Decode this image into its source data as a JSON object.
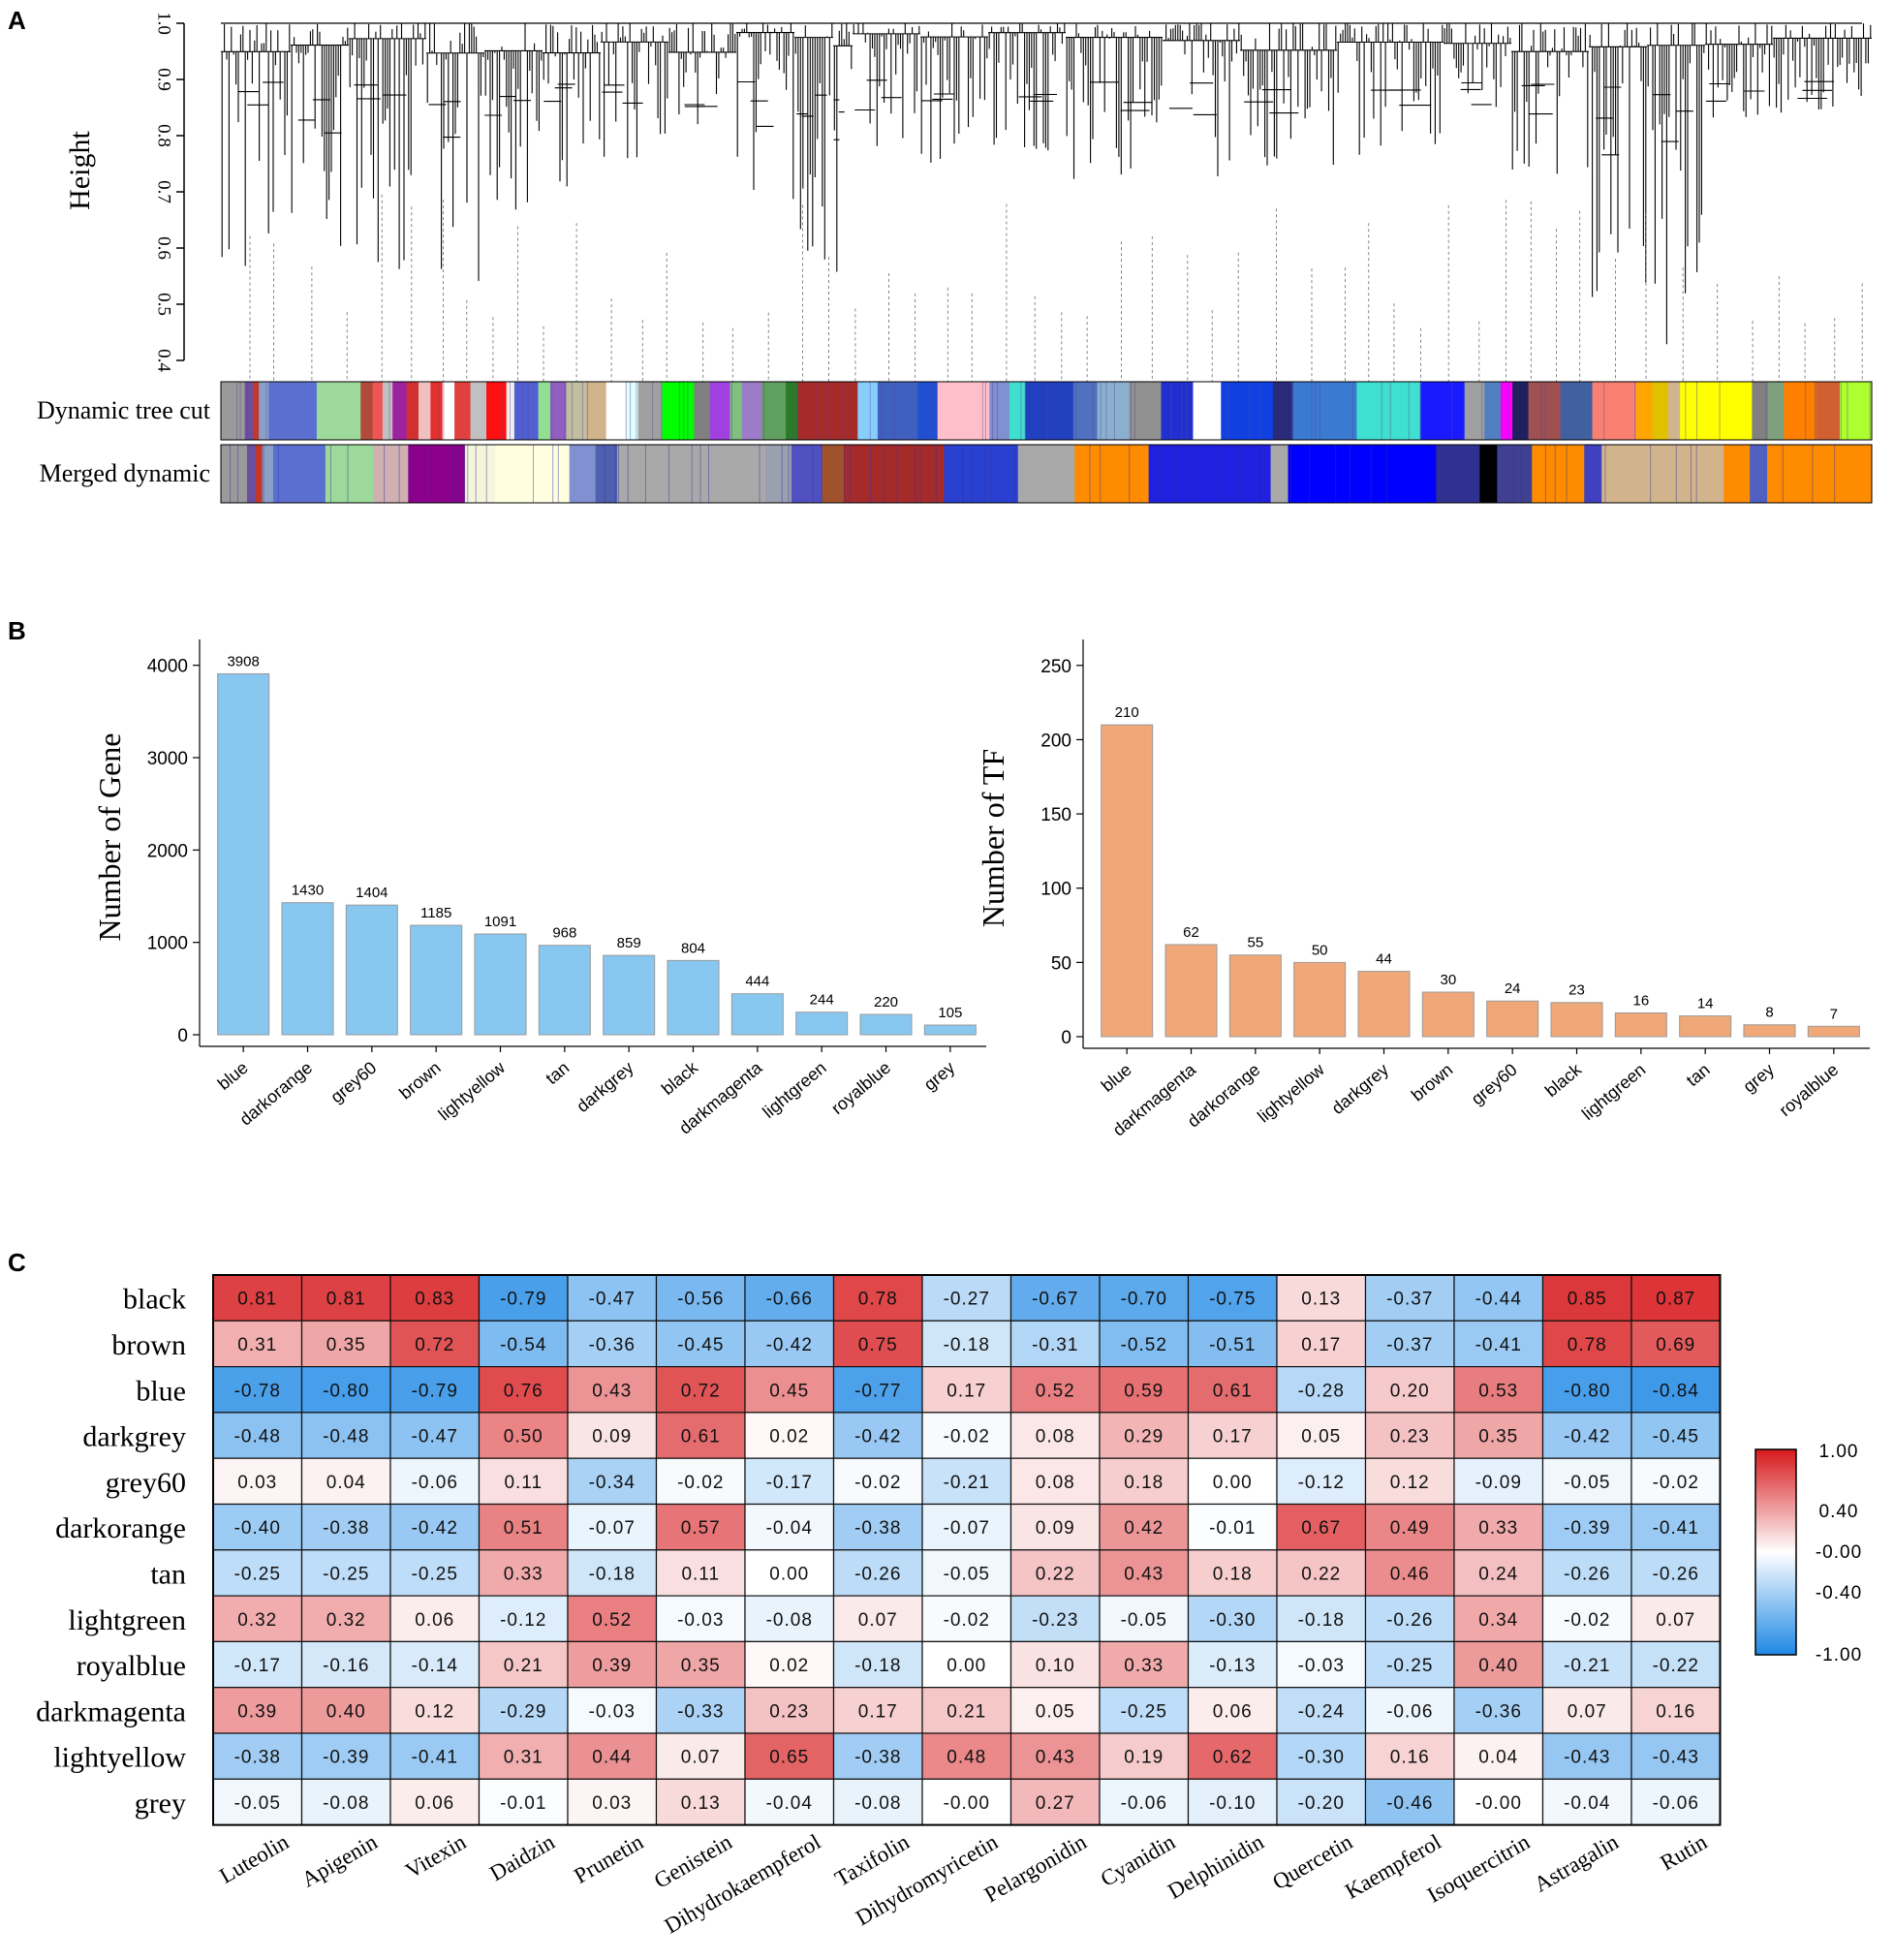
{
  "panels": {
    "a": "A",
    "b": "B",
    "c": "C"
  },
  "chart_data": [
    {
      "type": "dendrogram",
      "panel": "A",
      "ylabel": "Height",
      "ylim": [
        0.4,
        1.0
      ],
      "yticks": [
        "0.4",
        "0.5",
        "0.6",
        "0.7",
        "0.8",
        "0.9",
        "1.0"
      ],
      "color_rows": [
        {
          "label": "Dynamic tree cut",
          "segments": [
            {
              "color": "#9a9a9a",
              "w": 1.2
            },
            {
              "color": "#6b4ea0",
              "w": 0.4
            },
            {
              "color": "#c0392b",
              "w": 0.3
            },
            {
              "color": "#8aa0c8",
              "w": 0.5
            },
            {
              "color": "#5a6fd0",
              "w": 2.4
            },
            {
              "color": "#9dd99a",
              "w": 2.2
            },
            {
              "color": "#b04a3a",
              "w": 0.6
            },
            {
              "color": "#e55",
              "w": 0.5
            },
            {
              "color": "#c0c0c0",
              "w": 0.5
            },
            {
              "color": "#a020a0",
              "w": 0.7
            },
            {
              "color": "#d03030",
              "w": 0.6
            },
            {
              "color": "#f0c0c0",
              "w": 0.6
            },
            {
              "color": "#e03030",
              "w": 0.6
            },
            {
              "color": "#ffffff",
              "w": 0.6
            },
            {
              "color": "#e04040",
              "w": 0.8
            },
            {
              "color": "#c0c0c0",
              "w": 0.8
            },
            {
              "color": "#ff1010",
              "w": 1.0
            },
            {
              "color": "#f0f0f0",
              "w": 0.4
            },
            {
              "color": "#5060d0",
              "w": 1.2
            },
            {
              "color": "#90e090",
              "w": 0.6
            },
            {
              "color": "#9060c0",
              "w": 0.8
            },
            {
              "color": "#c0c0a0",
              "w": 1.0
            },
            {
              "color": "#d2b48c",
              "w": 1.0
            },
            {
              "color": "#ffffff",
              "w": 1.0
            },
            {
              "color": "#e0ffff",
              "w": 0.6
            },
            {
              "color": "#a0a0a0",
              "w": 1.2
            },
            {
              "color": "#00ff00",
              "w": 1.6
            },
            {
              "color": "#808080",
              "w": 0.8
            },
            {
              "color": "#a040e0",
              "w": 1.0
            },
            {
              "color": "#7fc07f",
              "w": 0.6
            },
            {
              "color": "#9c7bc9",
              "w": 1.0
            },
            {
              "color": "#60a060",
              "w": 1.2
            },
            {
              "color": "#2a7a2a",
              "w": 0.6
            },
            {
              "color": "#a52a2a",
              "w": 3.0
            },
            {
              "color": "#87cefa",
              "w": 1.0
            },
            {
              "color": "#4060c0",
              "w": 2.0
            },
            {
              "color": "#2050d0",
              "w": 1.0
            },
            {
              "color": "#ffc0cb",
              "w": 2.6
            },
            {
              "color": "#8090d0",
              "w": 1.0
            },
            {
              "color": "#40e0d0",
              "w": 0.8
            },
            {
              "color": "#2040c0",
              "w": 2.4
            },
            {
              "color": "#5070c0",
              "w": 1.2
            },
            {
              "color": "#8ab0d0",
              "w": 1.6
            },
            {
              "color": "#909090",
              "w": 1.6
            },
            {
              "color": "#2030d0",
              "w": 1.6
            },
            {
              "color": "#ffffff",
              "w": 1.4
            },
            {
              "color": "#1040e0",
              "w": 2.6
            },
            {
              "color": "#2a2a7a",
              "w": 1.0
            },
            {
              "color": "#3a7ad0",
              "w": 3.2
            },
            {
              "color": "#40e0d0",
              "w": 3.2
            },
            {
              "color": "#1a1aff",
              "w": 2.2
            },
            {
              "color": "#a0a0a0",
              "w": 1.0
            },
            {
              "color": "#5080c0",
              "w": 0.8
            },
            {
              "color": "#ff00ff",
              "w": 0.6
            },
            {
              "color": "#202060",
              "w": 0.8
            },
            {
              "color": "#a05050",
              "w": 1.6
            },
            {
              "color": "#4060a0",
              "w": 1.6
            },
            {
              "color": "#fa8072",
              "w": 2.2
            },
            {
              "color": "#ffa500",
              "w": 0.8
            },
            {
              "color": "#e0c000",
              "w": 0.8
            },
            {
              "color": "#d2b48c",
              "w": 0.6
            },
            {
              "color": "#ffff00",
              "w": 3.6
            },
            {
              "color": "#808080",
              "w": 0.8
            },
            {
              "color": "#7fa07f",
              "w": 0.8
            },
            {
              "color": "#ff7f00",
              "w": 1.6
            },
            {
              "color": "#d06030",
              "w": 1.2
            },
            {
              "color": "#adff2f",
              "w": 1.6
            }
          ]
        },
        {
          "label": "Merged dynamic",
          "segments": [
            {
              "color": "#9a9a9a",
              "w": 1.2
            },
            {
              "color": "#6b4ea0",
              "w": 0.4
            },
            {
              "color": "#c0392b",
              "w": 0.3
            },
            {
              "color": "#8aa0c8",
              "w": 0.5
            },
            {
              "color": "#5a6fd0",
              "w": 2.4
            },
            {
              "color": "#9dd99a",
              "w": 2.2
            },
            {
              "color": "#d0b0b0",
              "w": 1.6
            },
            {
              "color": "#8b008b",
              "w": 2.6
            },
            {
              "color": "#f5f5dc",
              "w": 1.4
            },
            {
              "color": "#ffffe0",
              "w": 3.4
            },
            {
              "color": "#8090d0",
              "w": 1.2
            },
            {
              "color": "#5060b0",
              "w": 1.0
            },
            {
              "color": "#a9a9a9",
              "w": 6.8
            },
            {
              "color": "#9aa0b0",
              "w": 1.2
            },
            {
              "color": "#5050c0",
              "w": 1.4
            },
            {
              "color": "#a0522d",
              "w": 1.0
            },
            {
              "color": "#a52a2a",
              "w": 4.6
            },
            {
              "color": "#2a40d0",
              "w": 3.4
            },
            {
              "color": "#a9a9a9",
              "w": 2.6
            },
            {
              "color": "#ff8c00",
              "w": 3.4
            },
            {
              "color": "#2020e0",
              "w": 5.6
            },
            {
              "color": "#a9a9a9",
              "w": 0.8
            },
            {
              "color": "#0000ff",
              "w": 6.8
            },
            {
              "color": "#303090",
              "w": 2.0
            },
            {
              "color": "#000000",
              "w": 0.8
            },
            {
              "color": "#404090",
              "w": 1.6
            },
            {
              "color": "#ff8c00",
              "w": 2.4
            },
            {
              "color": "#4040c0",
              "w": 0.8
            },
            {
              "color": "#d2b48c",
              "w": 5.6
            },
            {
              "color": "#ff8c00",
              "w": 1.2
            },
            {
              "color": "#5060c0",
              "w": 0.8
            },
            {
              "color": "#ff8c00",
              "w": 4.8
            }
          ]
        }
      ]
    },
    {
      "type": "bar",
      "panel": "B-left",
      "ylabel": "Number of Gene",
      "ylim": [
        0,
        4000
      ],
      "yticks": [
        "0",
        "1000",
        "2000",
        "3000",
        "4000"
      ],
      "categories": [
        "blue",
        "darkorange",
        "grey60",
        "brown",
        "lightyellow",
        "tan",
        "darkgrey",
        "black",
        "darkmagenta",
        "lightgreen",
        "royalblue",
        "grey"
      ],
      "values": [
        3908,
        1430,
        1404,
        1185,
        1091,
        968,
        859,
        804,
        444,
        244,
        220,
        105
      ],
      "bar_color": "#87c7f0"
    },
    {
      "type": "bar",
      "panel": "B-right",
      "ylabel": "Number of TF",
      "ylim": [
        0,
        250
      ],
      "yticks": [
        "0",
        "50",
        "100",
        "150",
        "200",
        "250"
      ],
      "categories": [
        "blue",
        "darkmagenta",
        "darkorange",
        "lightyellow",
        "darkgrey",
        "brown",
        "grey60",
        "black",
        "lightgreen",
        "tan",
        "grey",
        "royalblue"
      ],
      "values": [
        210,
        62,
        55,
        50,
        44,
        30,
        24,
        23,
        16,
        14,
        8,
        7
      ],
      "bar_color": "#f0a878"
    },
    {
      "type": "heatmap",
      "panel": "C",
      "rows": [
        "black",
        "brown",
        "blue",
        "darkgrey",
        "grey60",
        "darkorange",
        "tan",
        "lightgreen",
        "royalblue",
        "darkmagenta",
        "lightyellow",
        "grey"
      ],
      "columns": [
        "Luteolin",
        "Apigenin",
        "Vitexin",
        "Daidzin",
        "Prunetin",
        "Genistein",
        "Dihydrokaempferol",
        "Taxifolin",
        "Dihydromyricetin",
        "Pelargonidin",
        "Cyanidin",
        "Delphinidin",
        "Quercetin",
        "Kaempferol",
        "Isoquercitrin",
        "Astragalin",
        "Rutin"
      ],
      "values": [
        [
          "0.81",
          "0.81",
          "0.83",
          "-0.79",
          "-0.47",
          "-0.56",
          "-0.66",
          "0.78",
          "-0.27",
          "-0.67",
          "-0.70",
          "-0.75",
          "0.13",
          "-0.37",
          "-0.44",
          "0.85",
          "0.87"
        ],
        [
          "0.31",
          "0.35",
          "0.72",
          "-0.54",
          "-0.36",
          "-0.45",
          "-0.42",
          "0.75",
          "-0.18",
          "-0.31",
          "-0.52",
          "-0.51",
          "0.17",
          "-0.37",
          "-0.41",
          "0.78",
          "0.69"
        ],
        [
          "-0.78",
          "-0.80",
          "-0.79",
          "0.76",
          "0.43",
          "0.72",
          "0.45",
          "-0.77",
          "0.17",
          "0.52",
          "0.59",
          "0.61",
          "-0.28",
          "0.20",
          "0.53",
          "-0.80",
          "-0.84"
        ],
        [
          "-0.48",
          "-0.48",
          "-0.47",
          "0.50",
          "0.09",
          "0.61",
          "0.02",
          "-0.42",
          "-0.02",
          "0.08",
          "0.29",
          "0.17",
          "0.05",
          "0.23",
          "0.35",
          "-0.42",
          "-0.45"
        ],
        [
          "0.03",
          "0.04",
          "-0.06",
          "0.11",
          "-0.34",
          "-0.02",
          "-0.17",
          "-0.02",
          "-0.21",
          "0.08",
          "0.18",
          "0.00",
          "-0.12",
          "0.12",
          "-0.09",
          "-0.05",
          "-0.02"
        ],
        [
          "-0.40",
          "-0.38",
          "-0.42",
          "0.51",
          "-0.07",
          "0.57",
          "-0.04",
          "-0.38",
          "-0.07",
          "0.09",
          "0.42",
          "-0.01",
          "0.67",
          "0.49",
          "0.33",
          "-0.39",
          "-0.41"
        ],
        [
          "-0.25",
          "-0.25",
          "-0.25",
          "0.33",
          "-0.18",
          "0.11",
          "0.00",
          "-0.26",
          "-0.05",
          "0.22",
          "0.43",
          "0.18",
          "0.22",
          "0.46",
          "0.24",
          "-0.26",
          "-0.26"
        ],
        [
          "0.32",
          "0.32",
          "0.06",
          "-0.12",
          "0.52",
          "-0.03",
          "-0.08",
          "0.07",
          "-0.02",
          "-0.23",
          "-0.05",
          "-0.30",
          "-0.18",
          "-0.26",
          "0.34",
          "-0.02",
          "0.07"
        ],
        [
          "-0.17",
          "-0.16",
          "-0.14",
          "0.21",
          "0.39",
          "0.35",
          "0.02",
          "-0.18",
          "0.00",
          "0.10",
          "0.33",
          "-0.13",
          "-0.03",
          "-0.25",
          "0.40",
          "-0.21",
          "-0.22"
        ],
        [
          "0.39",
          "0.40",
          "0.12",
          "-0.29",
          "-0.03",
          "-0.33",
          "0.23",
          "0.17",
          "0.21",
          "0.05",
          "-0.25",
          "0.06",
          "-0.24",
          "-0.06",
          "-0.36",
          "0.07",
          "0.16"
        ],
        [
          "-0.38",
          "-0.39",
          "-0.41",
          "0.31",
          "0.44",
          "0.07",
          "0.65",
          "-0.38",
          "0.48",
          "0.43",
          "0.19",
          "0.62",
          "-0.30",
          "0.16",
          "0.04",
          "-0.43",
          "-0.43"
        ],
        [
          "-0.05",
          "-0.08",
          "0.06",
          "-0.01",
          "0.03",
          "0.13",
          "-0.04",
          "-0.08",
          "-0.00",
          "0.27",
          "-0.06",
          "-0.10",
          "-0.20",
          "-0.46",
          "-0.00",
          "-0.04",
          "-0.06"
        ]
      ],
      "legend": {
        "labels": [
          "1.00",
          "0.40",
          "-0.00",
          "-0.40",
          "-1.00"
        ],
        "colors": [
          "#d7191c",
          "#ffffff",
          "#1e88e5"
        ]
      }
    }
  ]
}
